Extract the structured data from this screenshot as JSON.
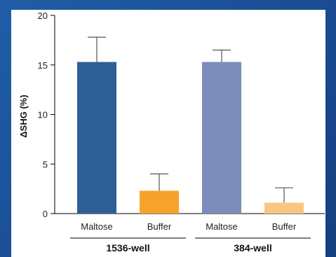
{
  "chart_data": {
    "type": "bar",
    "categories": [
      "Maltose",
      "Buffer",
      "Maltose",
      "Buffer"
    ],
    "values": [
      15.3,
      2.3,
      15.3,
      1.1
    ],
    "errors": [
      2.5,
      1.7,
      1.2,
      1.5
    ],
    "groups": [
      {
        "label": "1536-well",
        "categories": [
          0,
          1
        ]
      },
      {
        "label": "384-well",
        "categories": [
          2,
          3
        ]
      }
    ],
    "colors": [
      "#2d5f95",
      "#f5a32a",
      "#7b8db8",
      "#f9c682"
    ],
    "ylabel": "ΔSHG (%)",
    "yticks": [
      0,
      5,
      10,
      15,
      20
    ],
    "ylim": [
      0,
      20
    ],
    "grid": false
  }
}
